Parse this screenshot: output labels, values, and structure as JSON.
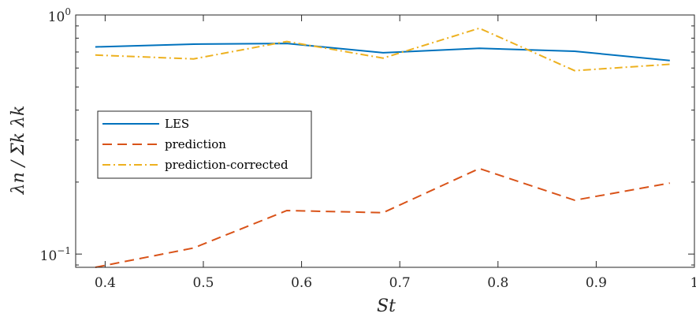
{
  "chart_data": {
    "type": "line",
    "title": "",
    "xlabel": "St",
    "ylabel": "λn / Σk λk",
    "xlim": [
      0.37,
      1.0
    ],
    "ylim": [
      0.088,
      1.0
    ],
    "yscale": "log",
    "grid": false,
    "legend_position": "left-middle",
    "x_ticks": [
      0.4,
      0.5,
      0.6,
      0.7,
      0.8,
      0.9,
      1.0
    ],
    "x_tick_labels": [
      "0.4",
      "0.5",
      "0.6",
      "0.7",
      "0.8",
      "0.9",
      "1"
    ],
    "y_ticks": [
      0.1,
      1.0
    ],
    "y_tick_labels": [
      {
        "base": "10",
        "exp": "−1"
      },
      {
        "base": "10",
        "exp": "0"
      }
    ],
    "x": [
      0.39,
      0.49,
      0.585,
      0.683,
      0.781,
      0.878,
      0.975
    ],
    "series": [
      {
        "name": "LES",
        "color": "#0072BD",
        "dash": "solid",
        "values": [
          0.735,
          0.755,
          0.76,
          0.695,
          0.725,
          0.705,
          0.645
        ]
      },
      {
        "name": "prediction",
        "color": "#D95319",
        "dash": "dashed",
        "values": [
          0.088,
          0.106,
          0.152,
          0.149,
          0.228,
          0.168,
          0.198
        ]
      },
      {
        "name": "prediction-corrected",
        "color": "#EDB120",
        "dash": "dashdot",
        "values": [
          0.68,
          0.655,
          0.775,
          0.66,
          0.88,
          0.585,
          0.622
        ]
      }
    ]
  }
}
